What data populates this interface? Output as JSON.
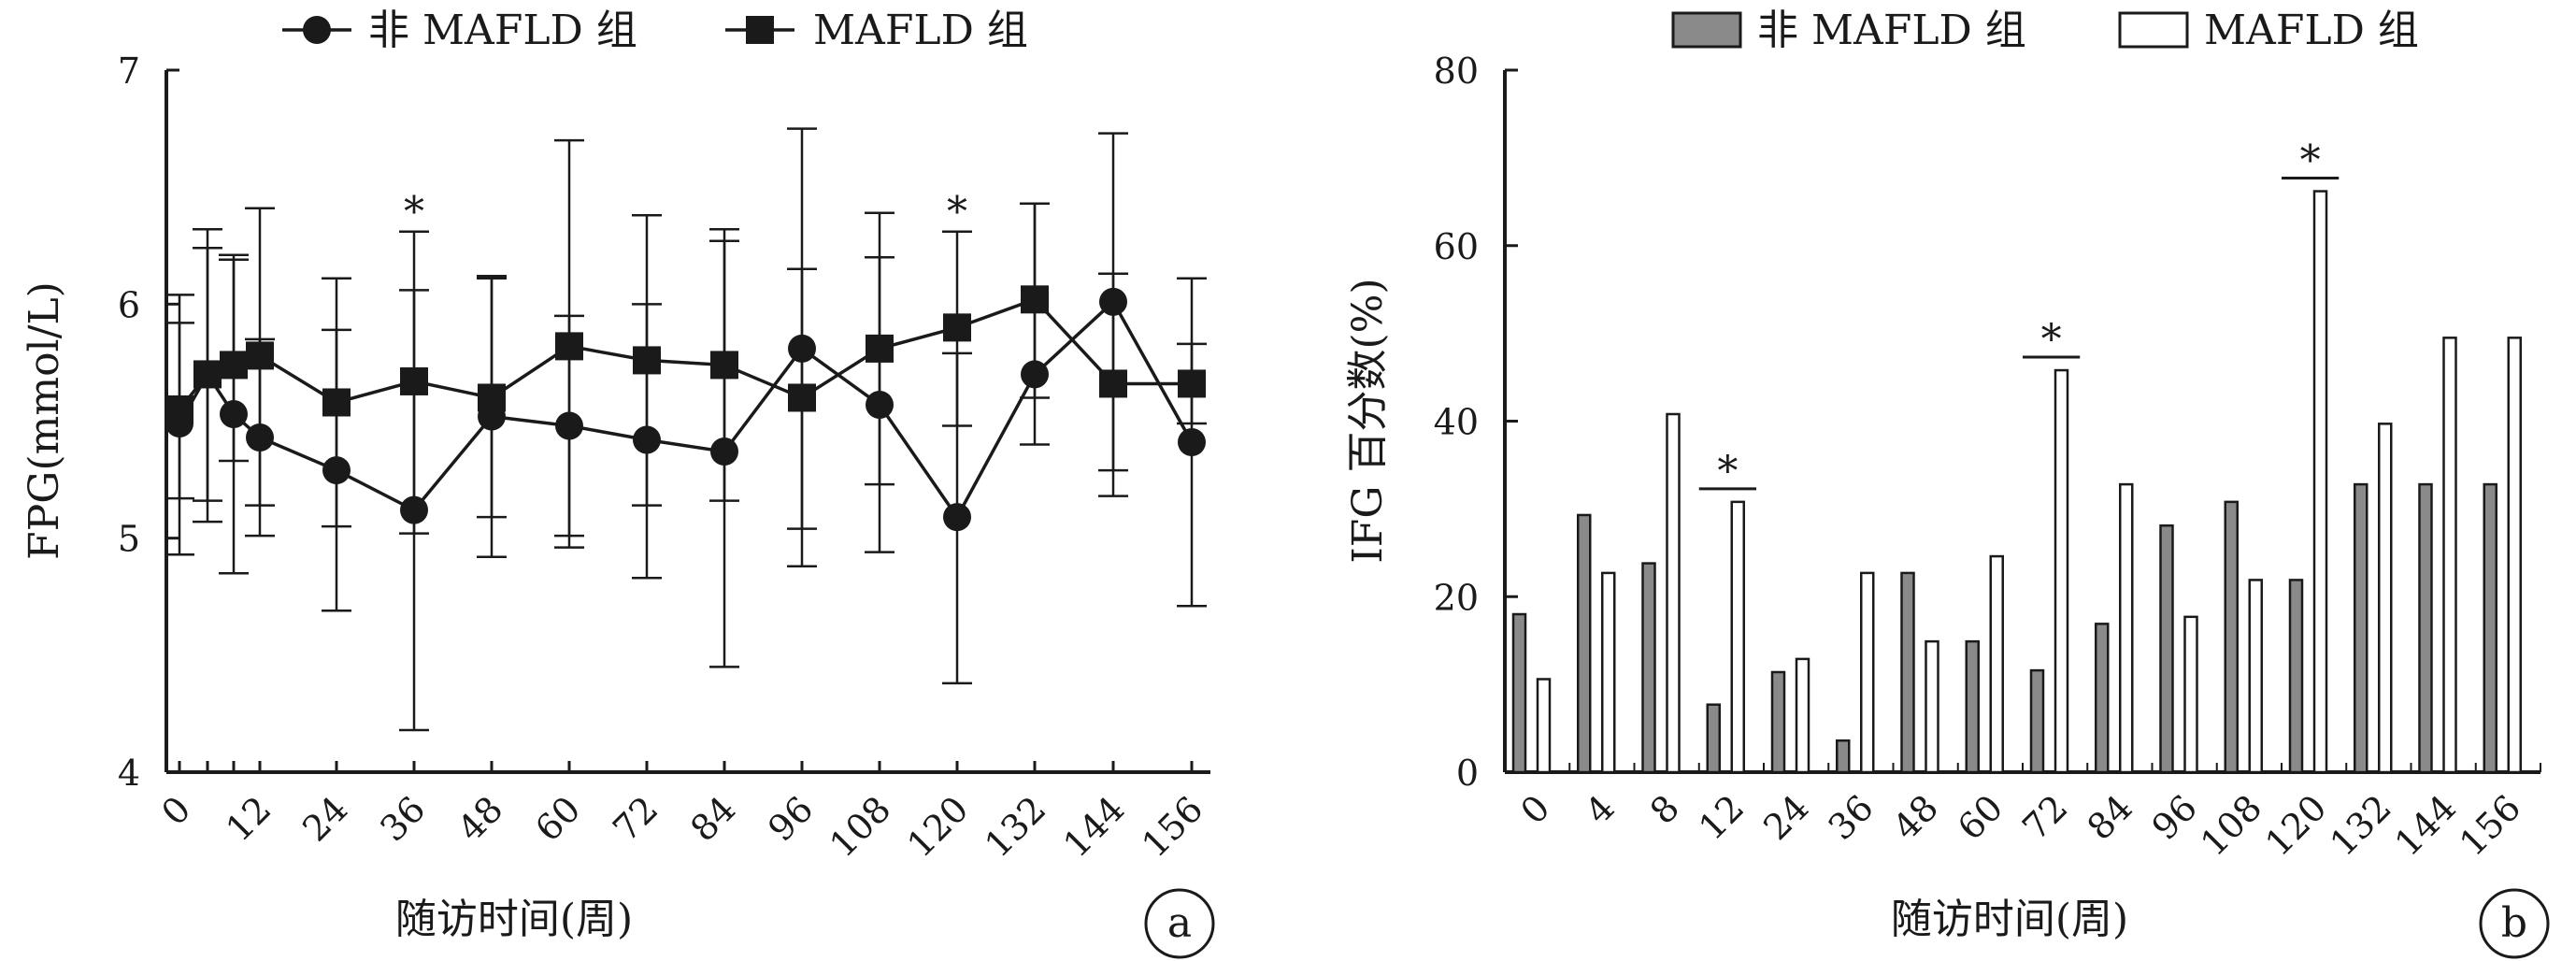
{
  "chart_data": [
    {
      "type": "line",
      "panel_label": "a",
      "xlabel": "随访时间(周)",
      "ylabel": "FPG(mmol/L)",
      "ylim": [
        4,
        7
      ],
      "yticks": [
        4,
        5,
        6,
        7
      ],
      "categories": [
        "0",
        "4",
        "8",
        "12",
        "24",
        "36",
        "48",
        "60",
        "72",
        "84",
        "96",
        "108",
        "120",
        "132",
        "144",
        "156"
      ],
      "x_tick_labels": [
        "0",
        "12",
        "24",
        "36",
        "48",
        "60",
        "72",
        "84",
        "96",
        "108",
        "120",
        "132",
        "144",
        "156"
      ],
      "legend_position": "top",
      "series": [
        {
          "name": "非 MAFLD 组",
          "marker": "circle",
          "values": [
            5.49,
            5.7,
            5.53,
            5.43,
            5.29,
            5.12,
            5.52,
            5.48,
            5.42,
            5.37,
            5.81,
            5.57,
            5.09,
            5.7,
            6.01,
            5.41
          ],
          "error_high": [
            6.04,
            6.24,
            6.21,
            5.85,
            5.89,
            6.06,
            6.11,
            5.95,
            6.0,
            6.27,
            6.75,
            6.2,
            5.79,
            6.43,
            6.73,
            6.11
          ],
          "error_low": [
            4.93,
            5.16,
            4.85,
            5.01,
            4.69,
            4.18,
            4.92,
            5.01,
            4.83,
            4.45,
            4.88,
            4.94,
            4.38,
            5.4,
            5.29,
            4.71
          ]
        },
        {
          "name": "MAFLD 组",
          "marker": "square",
          "values": [
            5.55,
            5.7,
            5.74,
            5.78,
            5.58,
            5.67,
            5.6,
            5.82,
            5.76,
            5.74,
            5.6,
            5.81,
            5.9,
            6.02,
            5.66,
            5.66
          ],
          "error_high": [
            5.92,
            6.32,
            6.19,
            6.41,
            6.11,
            6.31,
            6.12,
            6.7,
            6.38,
            6.32,
            6.15,
            6.39,
            6.31,
            6.43,
            6.13,
            5.83
          ],
          "error_low": [
            5.17,
            5.07,
            5.33,
            5.14,
            5.05,
            5.02,
            5.09,
            4.96,
            5.14,
            5.16,
            5.04,
            5.23,
            5.48,
            5.6,
            5.18,
            5.49
          ]
        }
      ],
      "annotations": [
        {
          "text": "*",
          "x": "36"
        },
        {
          "text": "*",
          "x": "120"
        }
      ]
    },
    {
      "type": "bar",
      "panel_label": "b",
      "xlabel": "随访时间(周)",
      "ylabel": "IFG 百分数(%)",
      "ylim": [
        0,
        80
      ],
      "yticks": [
        0,
        20,
        40,
        60,
        80
      ],
      "categories": [
        "0",
        "4",
        "8",
        "12",
        "24",
        "36",
        "48",
        "60",
        "72",
        "84",
        "96",
        "108",
        "120",
        "132",
        "144",
        "156"
      ],
      "legend_position": "top",
      "series": [
        {
          "name": "非 MAFLD 组",
          "color": "#8a8a8a",
          "values": [
            18,
            29.3,
            23.8,
            7.7,
            11.4,
            3.6,
            22.7,
            14.9,
            11.6,
            16.9,
            28.1,
            30.8,
            21.9,
            32.8,
            32.8,
            32.8
          ]
        },
        {
          "name": "MAFLD 组",
          "color": "#ffffff",
          "values": [
            10.6,
            22.7,
            40.8,
            30.8,
            12.9,
            22.7,
            14.9,
            24.6,
            45.8,
            32.8,
            17.7,
            21.9,
            66.2,
            39.7,
            49.5,
            49.5
          ]
        }
      ],
      "annotations": [
        {
          "text": "*",
          "x": "12"
        },
        {
          "text": "*",
          "x": "72"
        },
        {
          "text": "*",
          "x": "120"
        }
      ]
    }
  ]
}
